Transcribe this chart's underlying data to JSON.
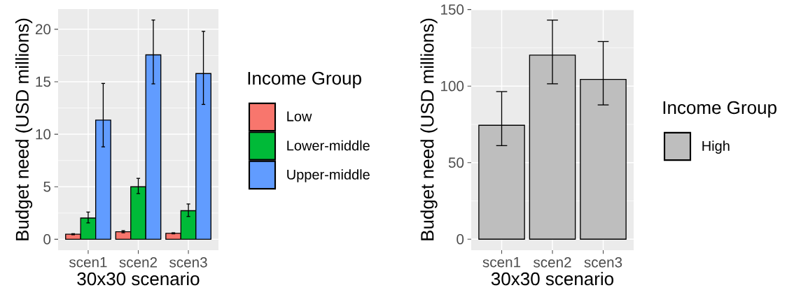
{
  "chart_data": [
    {
      "type": "bar",
      "categories": [
        "scen1",
        "scen2",
        "scen3"
      ],
      "xlabel": "30x30 scenario",
      "ylabel": "Budget need (USD millions)",
      "legend_title": "Income Group",
      "legend": "right",
      "grid": true,
      "ylim": [
        -1.04,
        21.92
      ],
      "yticks": [
        0,
        5,
        10,
        15,
        20
      ],
      "series": [
        {
          "name": "Low",
          "color": "#f8766d",
          "values": [
            0.48,
            0.72,
            0.57
          ],
          "errors": [
            [
              0.43,
              0.53
            ],
            [
              0.62,
              0.82
            ],
            [
              0.52,
              0.62
            ]
          ]
        },
        {
          "name": "Lower-middle",
          "color": "#00ba38",
          "values": [
            2.02,
            5.0,
            2.72
          ],
          "errors": [
            [
              1.56,
              2.59
            ],
            [
              4.35,
              5.8
            ],
            [
              2.17,
              3.36
            ]
          ]
        },
        {
          "name": "Upper-middle",
          "color": "#619cff",
          "values": [
            11.35,
            17.56,
            15.78
          ],
          "errors": [
            [
              8.8,
              14.84
            ],
            [
              14.8,
              20.88
            ],
            [
              12.84,
              19.8
            ]
          ]
        }
      ]
    },
    {
      "type": "bar",
      "categories": [
        "scen1",
        "scen2",
        "scen3"
      ],
      "xlabel": "30x30 scenario",
      "ylabel": "Budget need (USD millions)",
      "legend_title": "Income Group",
      "legend": "right",
      "grid": true,
      "ylim": [
        -7.2,
        150.3
      ],
      "yticks": [
        0,
        50,
        100,
        150
      ],
      "series": [
        {
          "name": "High",
          "color": "#bebebe",
          "values": [
            74.4,
            120.2,
            104.4
          ],
          "errors": [
            [
              61.1,
              96.4
            ],
            [
              101.5,
              143.1
            ],
            [
              87.7,
              129.1
            ]
          ]
        }
      ]
    }
  ]
}
